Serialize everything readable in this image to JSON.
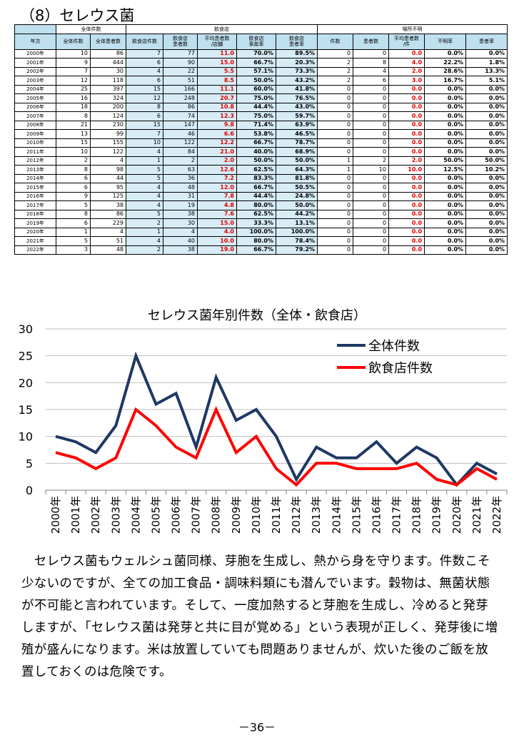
{
  "heading": "（8）セレウス菌",
  "table": {
    "group_headers": [
      "全体件数",
      "飲食店",
      "場所不明"
    ],
    "year_header": "年次",
    "columns": [
      "全体件数",
      "全体患者数",
      "飲食店件数",
      "飲食店\n患者数",
      "平均患者数\n/店舗",
      "飲食店\n事故率",
      "飲食店\n患者率",
      "件数",
      "患者数",
      "平均患者数\n/件",
      "不明率",
      "患者率"
    ],
    "rows": [
      [
        "2000年",
        "10",
        "86",
        "7",
        "77",
        "11.0",
        "70.0%",
        "89.5%",
        "0",
        "0",
        "0.0",
        "0.0%",
        "0.0%"
      ],
      [
        "2001年",
        "9",
        "444",
        "6",
        "90",
        "15.0",
        "66.7%",
        "20.3%",
        "2",
        "8",
        "4.0",
        "22.2%",
        "1.8%"
      ],
      [
        "2002年",
        "7",
        "30",
        "4",
        "22",
        "5.5",
        "57.1%",
        "73.3%",
        "2",
        "4",
        "2.0",
        "28.6%",
        "13.3%"
      ],
      [
        "2003年",
        "12",
        "118",
        "6",
        "51",
        "8.5",
        "50.0%",
        "43.2%",
        "2",
        "6",
        "3.0",
        "16.7%",
        "5.1%"
      ],
      [
        "2004年",
        "25",
        "397",
        "15",
        "166",
        "11.1",
        "60.0%",
        "41.8%",
        "0",
        "0",
        "0.0",
        "0.0%",
        "0.0%"
      ],
      [
        "2005年",
        "16",
        "324",
        "12",
        "248",
        "20.7",
        "75.0%",
        "76.5%",
        "0",
        "0",
        "0.0",
        "0.0%",
        "0.0%"
      ],
      [
        "2006年",
        "18",
        "200",
        "8",
        "86",
        "10.8",
        "44.4%",
        "43.0%",
        "0",
        "0",
        "0.0",
        "0.0%",
        "0.0%"
      ],
      [
        "2007年",
        "8",
        "124",
        "6",
        "74",
        "12.3",
        "75.0%",
        "59.7%",
        "0",
        "0",
        "0.0",
        "0.0%",
        "0.0%"
      ],
      [
        "2008年",
        "21",
        "230",
        "15",
        "147",
        "9.8",
        "71.4%",
        "63.9%",
        "0",
        "0",
        "0.0",
        "0.0%",
        "0.0%"
      ],
      [
        "2009年",
        "13",
        "99",
        "7",
        "46",
        "6.6",
        "53.8%",
        "46.5%",
        "0",
        "0",
        "0.0",
        "0.0%",
        "0.0%"
      ],
      [
        "2010年",
        "15",
        "155",
        "10",
        "122",
        "12.2",
        "66.7%",
        "78.7%",
        "0",
        "0",
        "0.0",
        "0.0%",
        "0.0%"
      ],
      [
        "2011年",
        "10",
        "122",
        "4",
        "84",
        "21.0",
        "40.0%",
        "68.9%",
        "0",
        "0",
        "0.0",
        "0.0%",
        "0.0%"
      ],
      [
        "2012年",
        "2",
        "4",
        "1",
        "2",
        "2.0",
        "50.0%",
        "50.0%",
        "1",
        "2",
        "2.0",
        "50.0%",
        "50.0%"
      ],
      [
        "2013年",
        "8",
        "98",
        "5",
        "63",
        "12.6",
        "62.5%",
        "64.3%",
        "1",
        "10",
        "10.0",
        "12.5%",
        "10.2%"
      ],
      [
        "2014年",
        "6",
        "44",
        "5",
        "36",
        "7.2",
        "83.3%",
        "81.8%",
        "0",
        "0",
        "0.0",
        "0.0%",
        "0.0%"
      ],
      [
        "2015年",
        "6",
        "95",
        "4",
        "48",
        "12.0",
        "66.7%",
        "50.5%",
        "0",
        "0",
        "0.0",
        "0.0%",
        "0.0%"
      ],
      [
        "2016年",
        "9",
        "125",
        "4",
        "31",
        "7.8",
        "44.4%",
        "24.8%",
        "0",
        "0",
        "0.0",
        "0.0%",
        "0.0%"
      ],
      [
        "2017年",
        "5",
        "38",
        "4",
        "19",
        "4.8",
        "80.0%",
        "50.0%",
        "0",
        "0",
        "0.0",
        "0.0%",
        "0.0%"
      ],
      [
        "2018年",
        "8",
        "86",
        "5",
        "38",
        "7.6",
        "62.5%",
        "44.2%",
        "0",
        "0",
        "0.0",
        "0.0%",
        "0.0%"
      ],
      [
        "2019年",
        "6",
        "229",
        "2",
        "30",
        "15.0",
        "33.3%",
        "13.1%",
        "0",
        "0",
        "0.0",
        "0.0%",
        "0.0%"
      ],
      [
        "2020年",
        "1",
        "4",
        "1",
        "4",
        "4.0",
        "100.0%",
        "100.0%",
        "0",
        "0",
        "0.0",
        "0.0%",
        "0.0%"
      ],
      [
        "2021年",
        "5",
        "51",
        "4",
        "40",
        "10.0",
        "80.0%",
        "78.4%",
        "0",
        "0",
        "0.0",
        "0.0%",
        "0.0%"
      ],
      [
        "2022年",
        "3",
        "48",
        "2",
        "38",
        "19.0",
        "66.7%",
        "79.2%",
        "0",
        "0",
        "0.0",
        "0.0%",
        "0.0%"
      ]
    ]
  },
  "chart_data": {
    "type": "line",
    "title": "セレウス菌年別件数（全体・飲食店）",
    "categories": [
      "2000年",
      "2001年",
      "2002年",
      "2003年",
      "2004年",
      "2005年",
      "2006年",
      "2007年",
      "2008年",
      "2009年",
      "2010年",
      "2011年",
      "2012年",
      "2013年",
      "2014年",
      "2015年",
      "2016年",
      "2017年",
      "2018年",
      "2019年",
      "2020年",
      "2021年",
      "2022年"
    ],
    "series": [
      {
        "name": "全体件数",
        "color": "#1f3864",
        "values": [
          10,
          9,
          7,
          12,
          25,
          16,
          18,
          8,
          21,
          13,
          15,
          10,
          2,
          8,
          6,
          6,
          9,
          5,
          8,
          6,
          1,
          5,
          3
        ]
      },
      {
        "name": "飲食店件数",
        "color": "#ff0000",
        "values": [
          7,
          6,
          4,
          6,
          15,
          12,
          8,
          6,
          15,
          7,
          10,
          4,
          1,
          5,
          5,
          4,
          4,
          4,
          5,
          2,
          1,
          4,
          2
        ]
      }
    ],
    "ylim": [
      0,
      30
    ],
    "yticks": [
      0,
      5,
      10,
      15,
      20,
      25,
      30
    ],
    "grid": true,
    "legend": "top-right"
  },
  "body_text": "　セレウス菌もウェルシュ菌同様、芽胞を生成し、熱から身を守ります。件数こそ少ないのですが、全ての加工食品・調味料類にも潜んでいます。穀物は、無菌状態が不可能と言われています。そして、一度加熱すると芽胞を生成し、冷めると発芽しますが、「セレウス菌は発芽と共に目が覚める」という表現が正しく、発芽後に増殖が盛んになります。米は放置していても問題ありませんが、炊いた後のご飯を放置しておくのは危険です。",
  "page_number": "－36－"
}
